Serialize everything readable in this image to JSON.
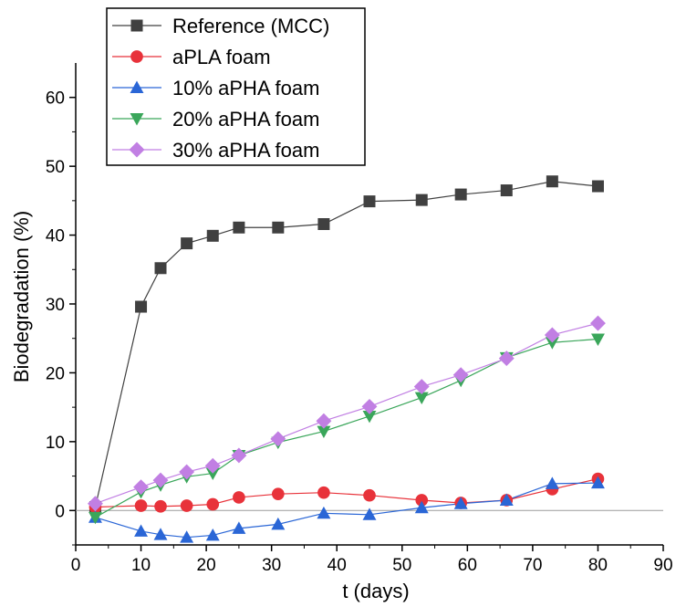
{
  "chart_data": {
    "type": "line",
    "xlabel": "t (days)",
    "ylabel": "Biodegradation (%)",
    "xlim": [
      0,
      90
    ],
    "ylim": [
      -5,
      65
    ],
    "xticks": [
      0,
      10,
      20,
      30,
      40,
      50,
      60,
      70,
      80,
      90
    ],
    "yticks": [
      0,
      10,
      20,
      30,
      40,
      50,
      60
    ],
    "zero_line": true,
    "legend_position": "top-left",
    "series": [
      {
        "name": "Reference (MCC)",
        "color": "#404040",
        "marker": "square",
        "x": [
          3,
          10,
          13,
          17,
          21,
          25,
          31,
          38,
          45,
          53,
          59,
          66,
          73,
          80
        ],
        "y": [
          0.5,
          29.6,
          35.2,
          38.8,
          39.9,
          41.1,
          41.1,
          41.6,
          44.9,
          45.1,
          45.9,
          46.5,
          47.8,
          47.1
        ]
      },
      {
        "name": "aPLA foam",
        "color": "#e8323a",
        "marker": "circle",
        "x": [
          3,
          10,
          13,
          17,
          21,
          25,
          31,
          38,
          45,
          53,
          59,
          66,
          73,
          80
        ],
        "y": [
          0.5,
          0.7,
          0.6,
          0.7,
          0.9,
          1.9,
          2.4,
          2.6,
          2.2,
          1.5,
          1.1,
          1.5,
          3.1,
          4.6
        ]
      },
      {
        "name": "10% aPHA foam",
        "color": "#2a66d6",
        "marker": "triangle-up",
        "x": [
          3,
          10,
          13,
          17,
          21,
          25,
          31,
          38,
          45,
          53,
          59,
          66,
          73,
          80
        ],
        "y": [
          -1.0,
          -3.0,
          -3.5,
          -3.9,
          -3.6,
          -2.6,
          -2.0,
          -0.4,
          -0.6,
          0.4,
          1.0,
          1.5,
          3.9,
          4.0
        ]
      },
      {
        "name": "20% aPHA foam",
        "color": "#3aa65a",
        "marker": "triangle-down",
        "x": [
          3,
          10,
          13,
          17,
          21,
          25,
          31,
          38,
          45,
          53,
          59,
          66,
          73,
          80
        ],
        "y": [
          -1.0,
          2.7,
          3.7,
          4.9,
          5.4,
          8.0,
          9.9,
          11.5,
          13.7,
          16.4,
          18.9,
          22.2,
          24.4,
          24.9
        ]
      },
      {
        "name": "30% aPHA foam",
        "color": "#c17fe3",
        "marker": "diamond",
        "x": [
          3,
          10,
          13,
          17,
          21,
          25,
          31,
          38,
          45,
          53,
          59,
          66,
          73,
          80
        ],
        "y": [
          1.0,
          3.4,
          4.4,
          5.6,
          6.5,
          8.0,
          10.4,
          13.0,
          15.1,
          18.0,
          19.7,
          22.1,
          25.5,
          27.2
        ]
      }
    ]
  }
}
